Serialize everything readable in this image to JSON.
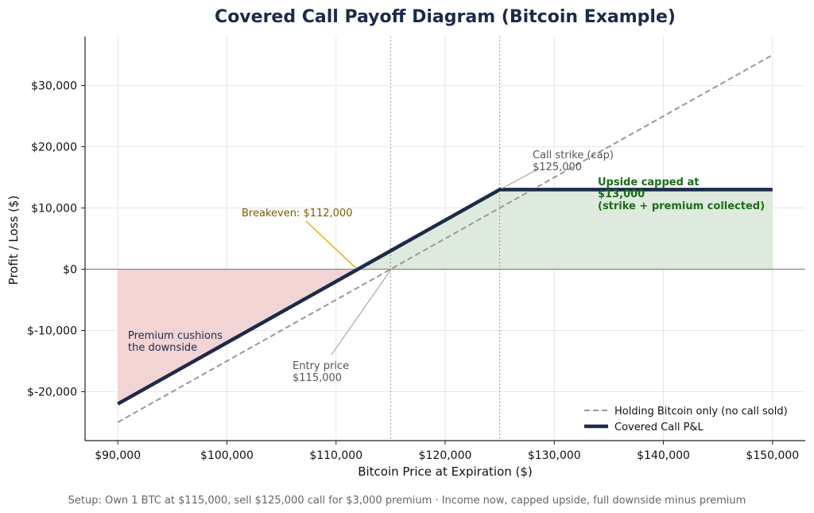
{
  "chart_data": {
    "type": "line",
    "title": "Covered Call Payoff Diagram (Bitcoin Example)",
    "xlabel": "Bitcoin Price at Expiration ($)",
    "ylabel": "Profit / Loss ($)",
    "xlim": [
      87000,
      153000
    ],
    "ylim": [
      -28000,
      38000
    ],
    "x_ticks": [
      90000,
      100000,
      110000,
      120000,
      130000,
      140000,
      150000
    ],
    "x_tick_labels": [
      "$90,000",
      "$100,000",
      "$110,000",
      "$120,000",
      "$130,000",
      "$140,000",
      "$150,000"
    ],
    "y_ticks": [
      -20000,
      -10000,
      0,
      10000,
      20000,
      30000
    ],
    "y_tick_labels": [
      "$-20,000",
      "$-10,000",
      "$0",
      "$10,000",
      "$20,000",
      "$30,000"
    ],
    "grid": true,
    "legend_position": "bottom-right",
    "series": [
      {
        "name": "Holding Bitcoin only (no call sold)",
        "style": "dashed",
        "color": "#999999",
        "x": [
          90000,
          150000
        ],
        "y": [
          -25000,
          35000
        ]
      },
      {
        "name": "Covered Call P&L",
        "style": "solid",
        "color": "#1c2a4a",
        "x": [
          90000,
          125000,
          150000
        ],
        "y": [
          -22000,
          13000,
          13000
        ]
      }
    ],
    "reference_lines": [
      {
        "axis": "x",
        "value": 115000
      },
      {
        "axis": "x",
        "value": 125000
      },
      {
        "axis": "y",
        "value": 0
      }
    ],
    "shaded_regions": [
      {
        "kind": "loss",
        "color": "#f2d4d4",
        "x_from": 90000,
        "x_to": 112000
      },
      {
        "kind": "profit",
        "color": "#deeadd",
        "x_from": 112000,
        "x_to": 150000
      }
    ],
    "annotations": {
      "call_strike": {
        "lines": [
          "Call strike (cap)",
          "$125,000"
        ],
        "color": "#555555",
        "point": [
          125000,
          13000
        ]
      },
      "upside_capped": {
        "lines": [
          "Upside capped at",
          "$13,000",
          "(strike + premium collected)"
        ],
        "color": "#1a6b1a"
      },
      "breakeven": {
        "lines": [
          "Breakeven: $112,000"
        ],
        "color": "#7a5c00",
        "point": [
          112000,
          0
        ]
      },
      "premium_cushion": {
        "lines": [
          "Premium cushions",
          "the downside"
        ],
        "color": "#1c2a4a"
      },
      "entry_price": {
        "lines": [
          "Entry price",
          "$115,000"
        ],
        "color": "#555555",
        "point": [
          115000,
          0
        ]
      }
    },
    "footer": "Setup: Own 1 BTC at $115,000, sell $125,000 call for $3,000 premium  ·  Income now, capped upside, full downside minus premium"
  }
}
